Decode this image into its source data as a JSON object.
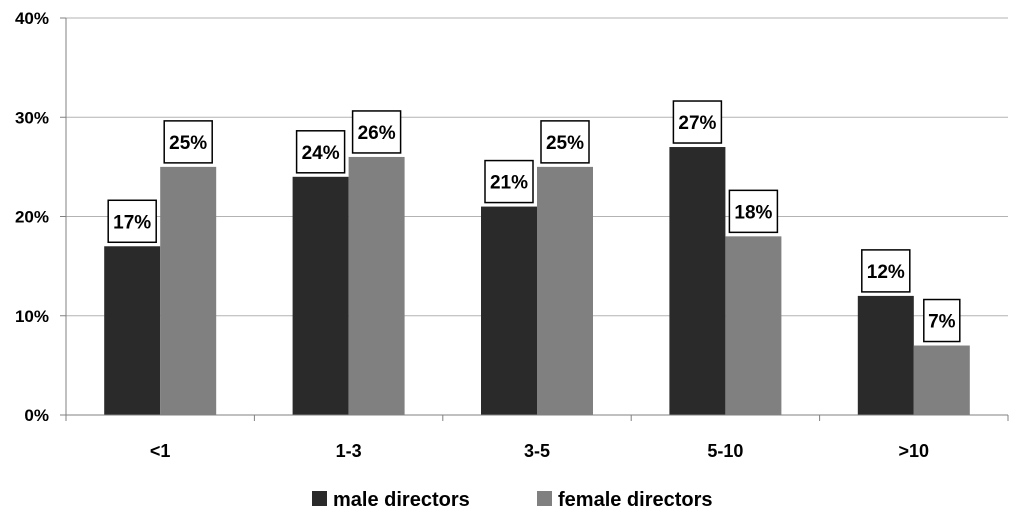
{
  "chart_data": {
    "type": "bar",
    "categories": [
      "<1",
      "1-3",
      "3-5",
      "5-10",
      ">10"
    ],
    "series": [
      {
        "name": "male directors",
        "values": [
          17,
          24,
          21,
          27,
          12
        ],
        "labels": [
          "17%",
          "24%",
          "21%",
          "27%",
          "12%"
        ],
        "color": "#2a2a2a"
      },
      {
        "name": "female directors",
        "values": [
          25,
          26,
          25,
          18,
          7
        ],
        "labels": [
          "25%",
          "26%",
          "25%",
          "18%",
          "7%"
        ],
        "color": "#808080"
      }
    ],
    "y_ticks": [
      0,
      10,
      20,
      30,
      40
    ],
    "y_tick_labels": [
      "0%",
      "10%",
      "20%",
      "30%",
      "40%"
    ],
    "ylim": [
      0,
      40
    ],
    "grid": true,
    "legend_position": "bottom",
    "title": "",
    "xlabel": "",
    "ylabel": ""
  }
}
